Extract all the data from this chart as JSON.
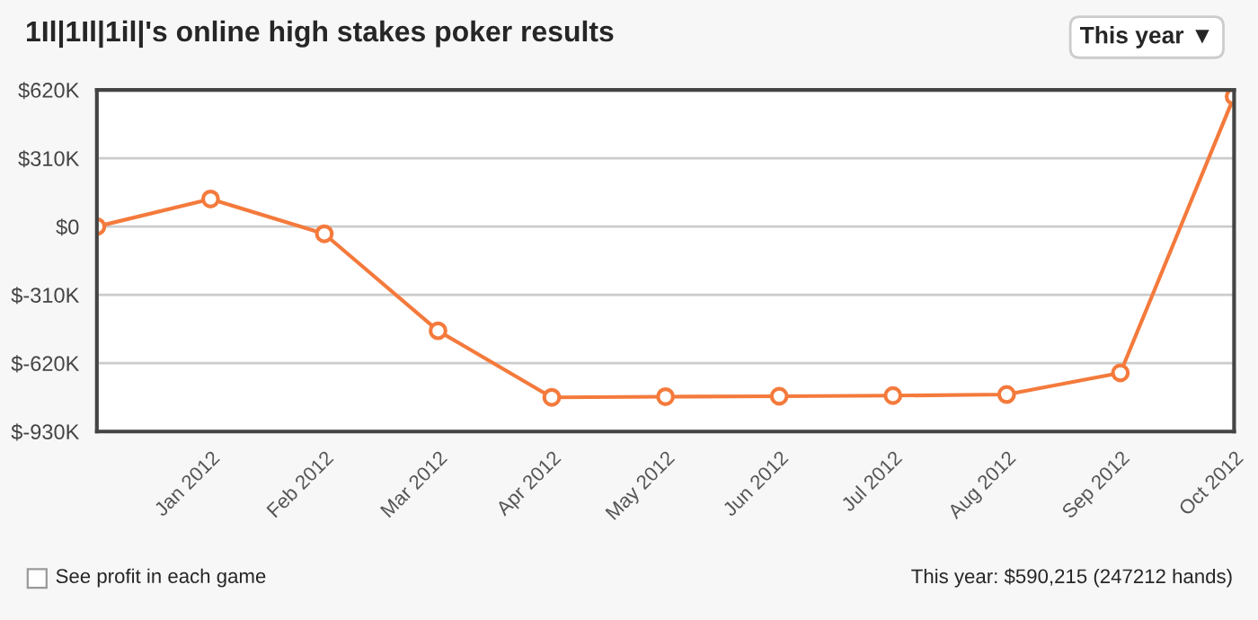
{
  "chart_data": {
    "type": "line",
    "title": "1Il|1Il|1il|'s online high stakes poker results",
    "categories": [
      null,
      "Jan 2012",
      "Feb 2012",
      "Mar 2012",
      "Apr 2012",
      "May 2012",
      "Jun 2012",
      "Jul 2012",
      "Aug 2012",
      "Sep 2012",
      "Oct 2012"
    ],
    "series": [
      {
        "color": "#f47a3c",
        "values": [
          0,
          125,
          -33,
          -473,
          -775,
          -772,
          -770,
          -767,
          -762,
          -664,
          590
        ]
      }
    ],
    "ylim": [
      -930,
      620
    ],
    "yticks": [
      {
        "value": -930,
        "label": "$-930K"
      },
      {
        "value": -620,
        "label": "$-620K"
      },
      {
        "value": -310,
        "label": "$-310K"
      },
      {
        "value": 0,
        "label": "$0"
      },
      {
        "value": 310,
        "label": "$310K"
      },
      {
        "value": 620,
        "label": "$620K"
      }
    ],
    "grid": "y",
    "marker": "circle",
    "line_style": "solid",
    "legend": false,
    "annotations": [
      "This year ▼",
      "See profit in each game",
      "This year: $590,215 (247212 hands)"
    ]
  }
}
